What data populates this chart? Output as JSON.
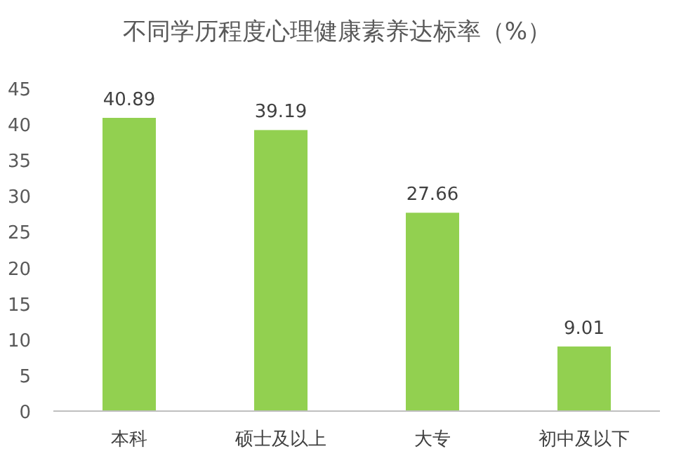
{
  "chart_data": {
    "type": "bar",
    "title": "不同学历程度心理健康素养达标率（%）",
    "categories": [
      "本科",
      "硕士及以上",
      "大专",
      "初中及以下"
    ],
    "values": [
      40.89,
      39.19,
      27.66,
      9.01
    ],
    "color": "#92d050",
    "ylim": [
      0,
      45
    ],
    "yticks": [
      0,
      5,
      10,
      15,
      20,
      25,
      30,
      35,
      40,
      45
    ],
    "data_labels": true
  }
}
